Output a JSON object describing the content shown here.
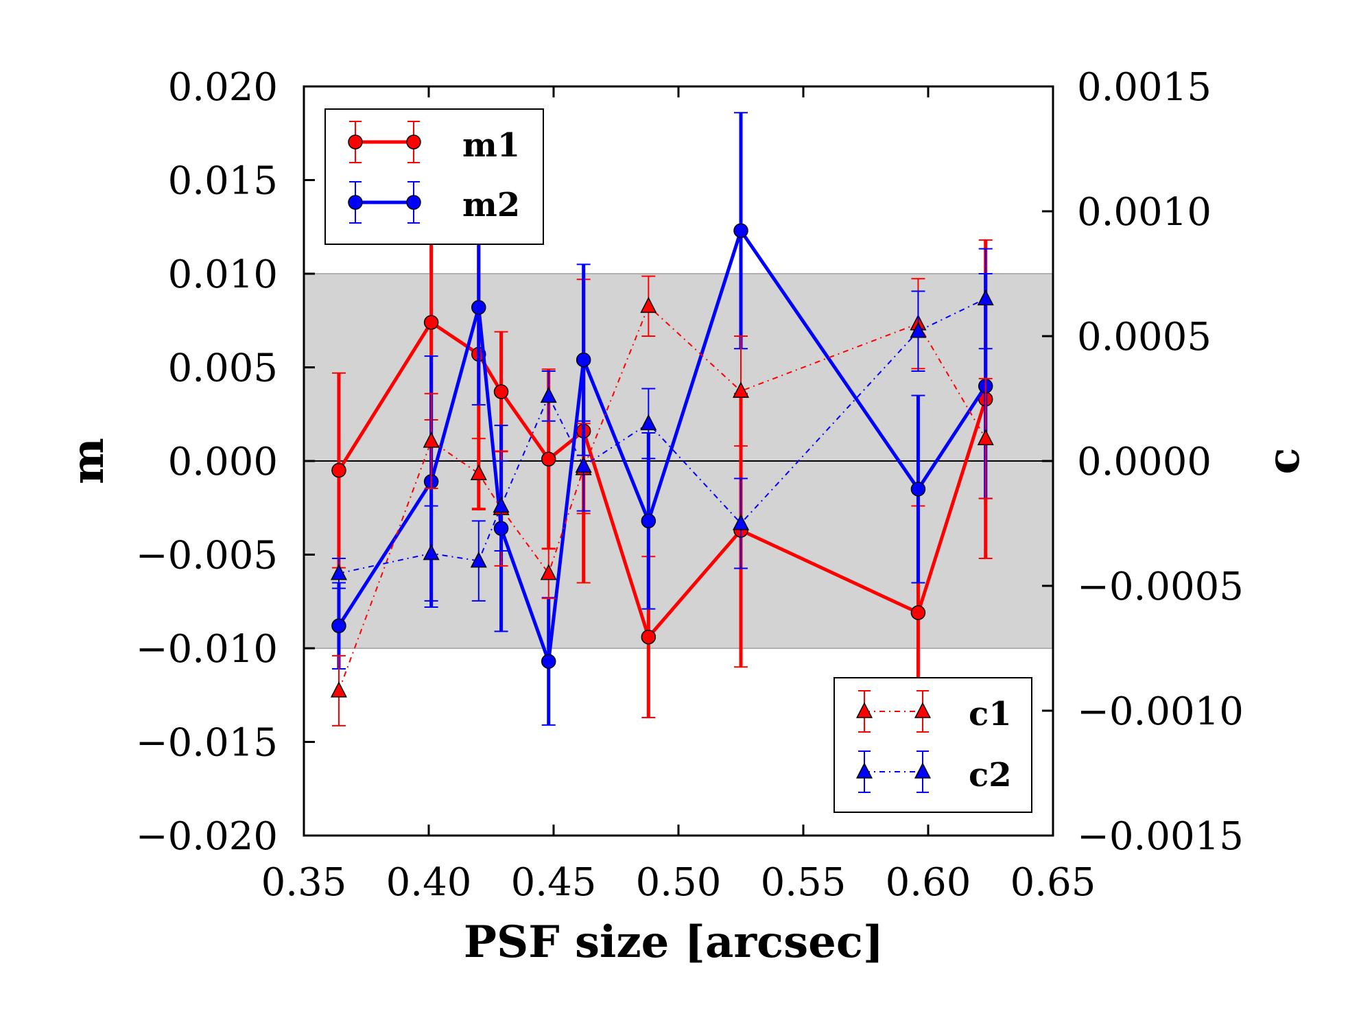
{
  "chart_data": {
    "type": "line",
    "xlabel": "PSF size [arcsec]",
    "ylabel_left": "m",
    "ylabel_right": "c",
    "xlim": [
      0.35,
      0.65
    ],
    "ylim_left": [
      -0.02,
      0.02
    ],
    "ylim_right": [
      -0.0015,
      0.0015
    ],
    "x_ticks": [
      "0.35",
      "0.40",
      "0.45",
      "0.50",
      "0.55",
      "0.60",
      "0.65"
    ],
    "y_left_ticks": [
      "0.020",
      "0.015",
      "0.010",
      "0.005",
      "0.000",
      "−0.005",
      "−0.010",
      "−0.015",
      "−0.020"
    ],
    "y_right_ticks": [
      "0.0015",
      "0.0010",
      "0.0005",
      "0.0000",
      "−0.0005",
      "−0.0010",
      "−0.0015"
    ],
    "y_left_tick_values": [
      0.02,
      0.015,
      0.01,
      0.005,
      0.0,
      -0.005,
      -0.01,
      -0.015,
      -0.02
    ],
    "y_right_tick_values": [
      0.0015,
      0.001,
      0.0005,
      0.0,
      -0.0005,
      -0.001,
      -0.0015
    ],
    "x_tick_values": [
      0.35,
      0.4,
      0.45,
      0.5,
      0.55,
      0.6,
      0.65
    ],
    "shaded_band": [
      -0.01,
      0.01
    ],
    "reference_line": 0.0,
    "x": [
      0.364,
      0.401,
      0.42,
      0.429,
      0.448,
      0.462,
      0.488,
      0.525,
      0.596,
      0.623
    ],
    "series": [
      {
        "name": "m1",
        "axis": "left",
        "color": "#ff0000",
        "marker": "circle",
        "linestyle": "solid",
        "values": [
          -0.0005,
          0.0074,
          0.0057,
          0.0037,
          0.0001,
          0.0016,
          -0.0094,
          -0.0037,
          -0.0081,
          0.0033
        ],
        "errors": [
          0.0052,
          0.0052,
          0.0083,
          0.0032,
          0.0048,
          0.0081,
          0.0043,
          0.0073,
          0.0057,
          0.0085
        ]
      },
      {
        "name": "m2",
        "axis": "left",
        "color": "#0000ff",
        "marker": "circle",
        "linestyle": "solid",
        "values": [
          -0.0088,
          -0.0011,
          0.0082,
          -0.0036,
          -0.0107,
          0.0054,
          -0.0032,
          0.0123,
          -0.0015,
          0.004
        ],
        "errors": [
          0.0023,
          0.0067,
          0.0052,
          0.0055,
          0.0034,
          0.0051,
          0.0047,
          0.0063,
          0.005,
          0.006
        ]
      },
      {
        "name": "c1",
        "axis": "right",
        "color": "#ff0000",
        "marker": "triangle",
        "linestyle": "dashdot",
        "values": [
          -0.00092,
          8e-05,
          -5e-05,
          -0.00019,
          -0.00045,
          -3e-05,
          0.00062,
          0.00028,
          0.00055,
          9e-05
        ],
        "errors": [
          0.00014,
          0.00019,
          0.00014,
          0.00023,
          0.0001,
          0.00018,
          0.00012,
          0.00022,
          0.00018,
          0.00024
        ]
      },
      {
        "name": "c2",
        "axis": "right",
        "color": "#0000ff",
        "marker": "triangle",
        "linestyle": "dashdot",
        "values": [
          -0.00045,
          -0.00037,
          -0.0004,
          -0.00018,
          0.00026,
          -2e-05,
          0.00015,
          -0.00025,
          0.00052,
          0.00065
        ],
        "errors": [
          6e-05,
          0.00019,
          0.00016,
          0.00018,
          0.0001,
          0.00018,
          0.00014,
          0.00018,
          0.00016,
          0.0002
        ]
      }
    ],
    "legend_upper": {
      "location": "upper-left",
      "entries": [
        "m1",
        "m2"
      ]
    },
    "legend_lower": {
      "location": "lower-right",
      "entries": [
        "c1",
        "c2"
      ]
    }
  }
}
